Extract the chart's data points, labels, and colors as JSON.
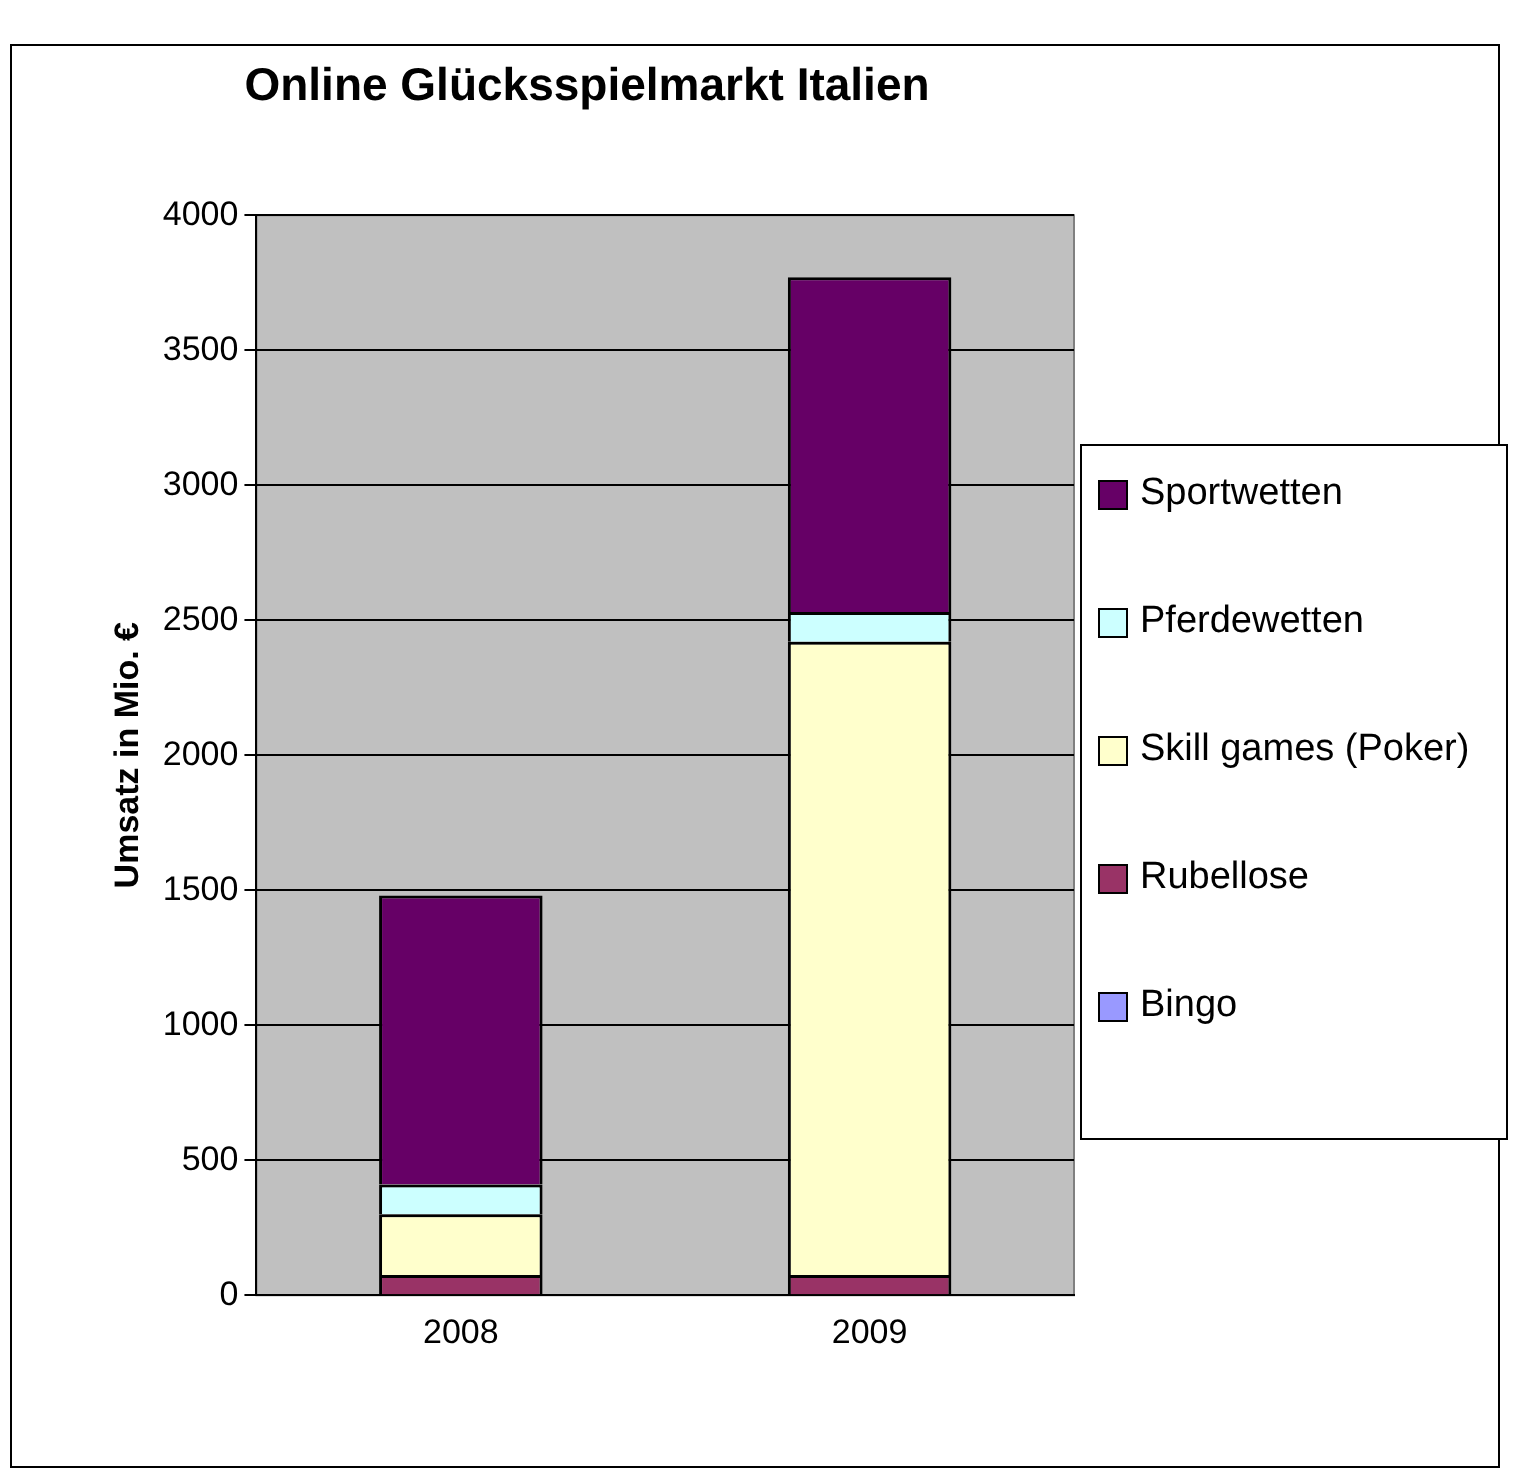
{
  "chart_data": {
    "type": "bar",
    "title": "Online Glücksspielmarkt Italien",
    "ylabel": "Umsatz in Mio. €",
    "categories": [
      "2008",
      "2009"
    ],
    "stacked": true,
    "grid": "y",
    "legend": "right",
    "ylim": [
      0,
      4000
    ],
    "yticks": [
      0,
      500,
      1000,
      1500,
      2000,
      2500,
      3000,
      3500,
      4000
    ],
    "series": [
      {
        "name": "Bingo",
        "color": "#9999ff",
        "values": [
          0,
          0
        ]
      },
      {
        "name": "Rubellose",
        "color": "#993366",
        "values": [
          75,
          75
        ]
      },
      {
        "name": "Skill games (Poker)",
        "color": "#ffffcc",
        "values": [
          225,
          2345
        ]
      },
      {
        "name": "Pferdewetten",
        "color": "#ccffff",
        "values": [
          110,
          110
        ]
      },
      {
        "name": "Sportwetten",
        "color": "#660066",
        "values": [
          1070,
          1240
        ]
      }
    ]
  }
}
